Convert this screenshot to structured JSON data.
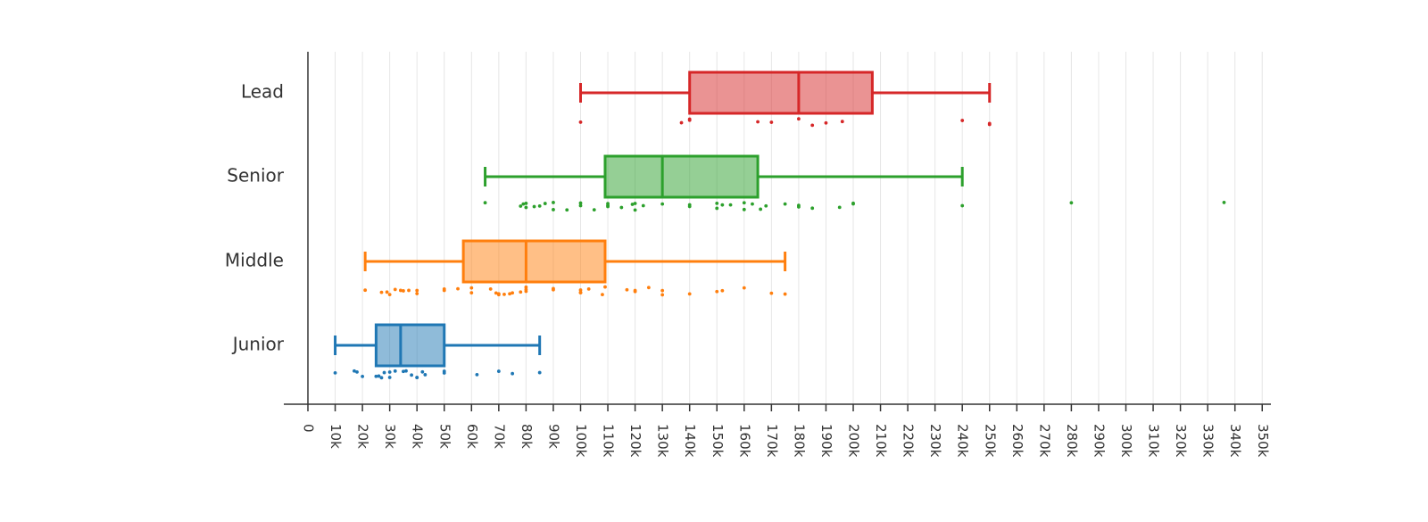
{
  "chart_data": {
    "type": "boxplot",
    "orientation": "horizontal",
    "categories": [
      "Lead",
      "Senior",
      "Middle",
      "Junior"
    ],
    "x_ticks": [
      "0",
      "10k",
      "20k",
      "30k",
      "40k",
      "50k",
      "60k",
      "70k",
      "80k",
      "90k",
      "100k",
      "110k",
      "120k",
      "130k",
      "140k",
      "150k",
      "160k",
      "170k",
      "180k",
      "190k",
      "200k",
      "210k",
      "220k",
      "230k",
      "240k",
      "250k",
      "260k",
      "270k",
      "280k",
      "290k",
      "300k",
      "310k",
      "320k",
      "330k",
      "340k",
      "350k"
    ],
    "xlim": [
      0,
      350000
    ],
    "grid": "vertical",
    "xlabel": "",
    "ylabel": "",
    "title": "",
    "series": [
      {
        "category": "Lead",
        "color": "#d62728",
        "whisker_low": 100000,
        "q1": 140000,
        "median": 180000,
        "q3": 207000,
        "whisker_high": 250000,
        "points": [
          100000,
          137000,
          140000,
          140000,
          165000,
          170000,
          180000,
          185000,
          190000,
          196000,
          240000,
          250000,
          250000
        ]
      },
      {
        "category": "Senior",
        "color": "#2ca02c",
        "whisker_low": 65000,
        "q1": 109000,
        "median": 130000,
        "q3": 165000,
        "whisker_high": 240000,
        "points": [
          65000,
          78000,
          79000,
          80000,
          80000,
          83000,
          85000,
          87000,
          90000,
          90000,
          95000,
          100000,
          100000,
          105000,
          110000,
          110000,
          110000,
          115000,
          119000,
          120000,
          120000,
          123000,
          130000,
          140000,
          140000,
          150000,
          150000,
          152000,
          155000,
          160000,
          160000,
          163000,
          166000,
          168000,
          175000,
          180000,
          180000,
          185000,
          195000,
          200000,
          200000,
          240000,
          280000,
          336000
        ]
      },
      {
        "category": "Middle",
        "color": "#ff7f0e",
        "whisker_low": 21000,
        "q1": 57000,
        "median": 80000,
        "q3": 109000,
        "whisker_high": 175000,
        "points": [
          21000,
          27000,
          29000,
          30000,
          32000,
          34000,
          35000,
          37000,
          40000,
          40000,
          50000,
          50000,
          55000,
          60000,
          60000,
          67000,
          69000,
          70000,
          70000,
          72000,
          74000,
          75000,
          78000,
          80000,
          80000,
          80000,
          90000,
          90000,
          100000,
          100000,
          100000,
          103000,
          108000,
          109000,
          117000,
          120000,
          120000,
          125000,
          130000,
          130000,
          140000,
          150000,
          152000,
          160000,
          170000,
          175000
        ]
      },
      {
        "category": "Junior",
        "color": "#1f77b4",
        "whisker_low": 10000,
        "q1": 25000,
        "median": 34000,
        "q3": 50000,
        "whisker_high": 85000,
        "points": [
          10000,
          17000,
          18000,
          20000,
          25000,
          26000,
          27000,
          28000,
          30000,
          30000,
          32000,
          35000,
          36000,
          38000,
          40000,
          40000,
          42000,
          43000,
          50000,
          50000,
          62000,
          70000,
          75000,
          85000
        ]
      }
    ]
  }
}
